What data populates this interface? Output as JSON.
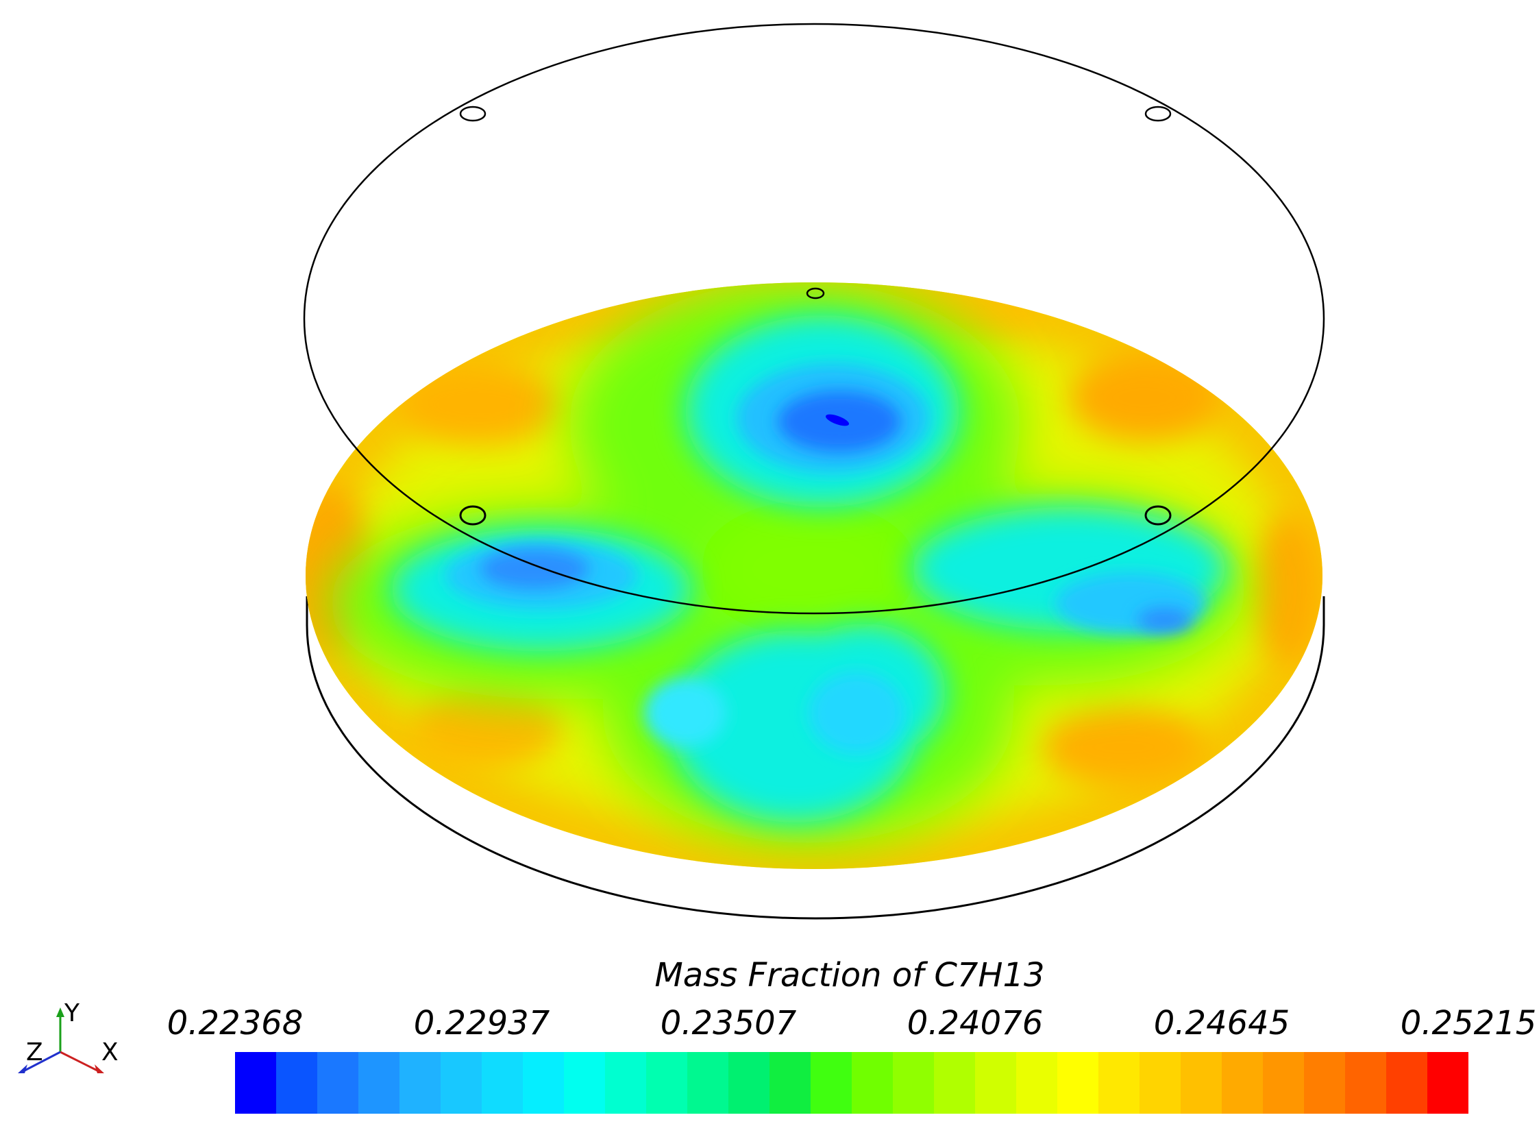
{
  "legend": {
    "title": "Mass Fraction of C7H13",
    "ticks": [
      "0.22368",
      "0.22937",
      "0.23507",
      "0.24076",
      "0.24645",
      "0.25215"
    ],
    "colors": [
      "#0000ff",
      "#0a55ff",
      "#1a78ff",
      "#1e95ff",
      "#1fb2ff",
      "#18c8ff",
      "#0fdcff",
      "#05eeff",
      "#00fff0",
      "#00ffd0",
      "#00ffb0",
      "#00f890",
      "#00f070",
      "#10ee40",
      "#40ff10",
      "#70ff00",
      "#90ff00",
      "#b0ff00",
      "#d0ff00",
      "#eaff00",
      "#ffff00",
      "#ffe800",
      "#ffd400",
      "#ffc000",
      "#ffaa00",
      "#ff9600",
      "#ff7e00",
      "#ff6400",
      "#ff4000",
      "#ff0000"
    ],
    "min": 0.22368,
    "max": 0.25215
  },
  "axes_triad": {
    "x": "X",
    "y": "Y",
    "z": "Z"
  }
}
